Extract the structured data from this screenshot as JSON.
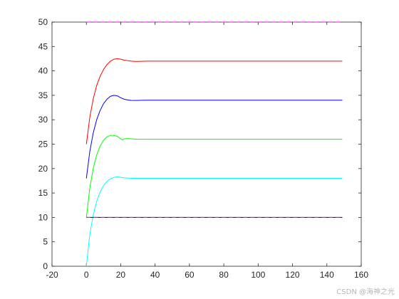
{
  "chart_data": {
    "type": "line",
    "title": "",
    "xlabel": "",
    "ylabel": "",
    "xlim": [
      -20,
      160
    ],
    "ylim": [
      0,
      50
    ],
    "xticks": [
      -20,
      0,
      20,
      40,
      60,
      80,
      100,
      120,
      140,
      160
    ],
    "yticks": [
      0,
      5,
      10,
      15,
      20,
      25,
      30,
      35,
      40,
      45,
      50
    ],
    "grid": false,
    "series": [
      {
        "color": "#ff0000",
        "style": "solid",
        "x": [
          0,
          2,
          4,
          6,
          8,
          10,
          12,
          14,
          16,
          18,
          20,
          22,
          24,
          26,
          28,
          30,
          35,
          40,
          50,
          60,
          80,
          100,
          120,
          140,
          149
        ],
        "y": [
          25,
          30.5,
          34.3,
          37,
          38.9,
          40.3,
          41.3,
          42,
          42.4,
          42.5,
          42.4,
          42.2,
          42.1,
          42.0,
          41.95,
          41.95,
          42,
          42,
          42,
          42,
          42,
          42,
          42,
          42,
          42
        ]
      },
      {
        "color": "#0000ff",
        "style": "solid",
        "x": [
          0,
          2,
          4,
          6,
          8,
          10,
          12,
          14,
          16,
          18,
          20,
          22,
          24,
          26,
          28,
          30,
          35,
          40,
          50,
          60,
          80,
          100,
          120,
          140,
          149
        ],
        "y": [
          18,
          23.5,
          27.3,
          30,
          31.9,
          33.3,
          34.2,
          34.8,
          35,
          34.9,
          34.5,
          34.2,
          34.05,
          33.97,
          33.95,
          33.97,
          34,
          34,
          34,
          34,
          34,
          34,
          34,
          34,
          34
        ]
      },
      {
        "color": "#00ff00",
        "style": "solid",
        "x": [
          0,
          2,
          4,
          6,
          8,
          10,
          12,
          14,
          16,
          18,
          20,
          21,
          22,
          24,
          26,
          28,
          30,
          35,
          40,
          50,
          60,
          80,
          100,
          120,
          140,
          149
        ],
        "y": [
          10,
          16,
          20.1,
          22.8,
          24.6,
          25.8,
          26.5,
          26.8,
          26.8,
          26.6,
          26.1,
          25.9,
          26.1,
          26.15,
          26.1,
          26.05,
          26,
          26,
          26,
          26,
          26,
          26,
          26,
          26,
          26,
          26
        ]
      },
      {
        "color": "#00ffff",
        "style": "solid",
        "x": [
          0,
          2,
          4,
          6,
          8,
          10,
          12,
          14,
          16,
          18,
          20,
          22,
          24,
          26,
          28,
          30,
          35,
          40,
          50,
          60,
          80,
          100,
          120,
          140,
          149
        ],
        "y": [
          0,
          6.5,
          10.5,
          13.3,
          15.2,
          16.5,
          17.4,
          17.9,
          18.2,
          18.3,
          18.2,
          18.1,
          18.05,
          18.0,
          18.0,
          18.0,
          18,
          18,
          18,
          18,
          18,
          18,
          18,
          18,
          18
        ]
      },
      {
        "color": "#000000",
        "style": "solid",
        "x": [
          0,
          149
        ],
        "y": [
          10,
          10
        ]
      },
      {
        "color": "#ff00ff",
        "style": "dashed",
        "x": [
          0,
          149
        ],
        "y": [
          10,
          10
        ]
      },
      {
        "color": "#ff00ff",
        "style": "dashed",
        "x": [
          0,
          149
        ],
        "y": [
          50,
          50
        ]
      }
    ]
  },
  "watermark": "CSDN @海神之光"
}
